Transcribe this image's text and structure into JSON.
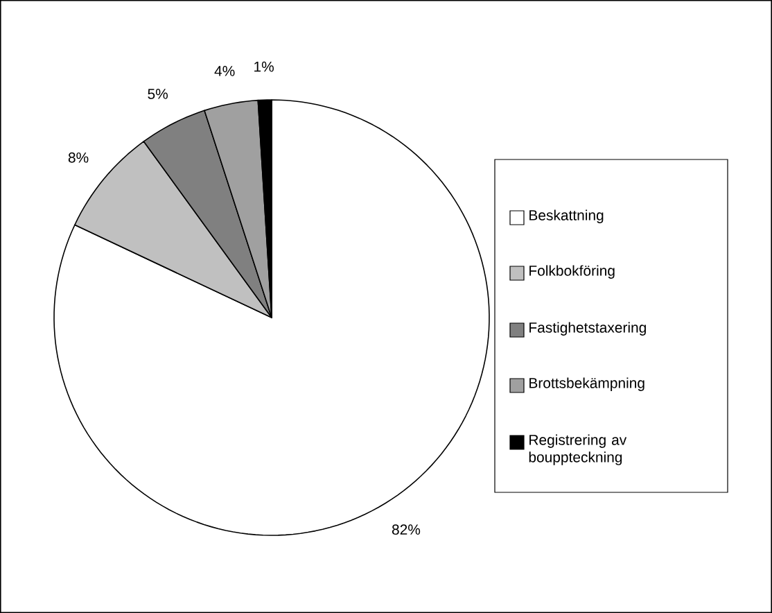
{
  "chart_data": {
    "type": "pie",
    "categories": [
      "Beskattning",
      "Folkbokföring",
      "Fastighetstaxering",
      "Brottsbekämpning",
      "Registrering av bouppteckning"
    ],
    "values": [
      82,
      8,
      5,
      4,
      1
    ],
    "value_labels": [
      "82%",
      "8%",
      "5%",
      "4%",
      "1%"
    ],
    "colors": [
      "#ffffff",
      "#c0c0c0",
      "#808080",
      "#a0a0a0",
      "#000000"
    ],
    "legend": "right"
  }
}
